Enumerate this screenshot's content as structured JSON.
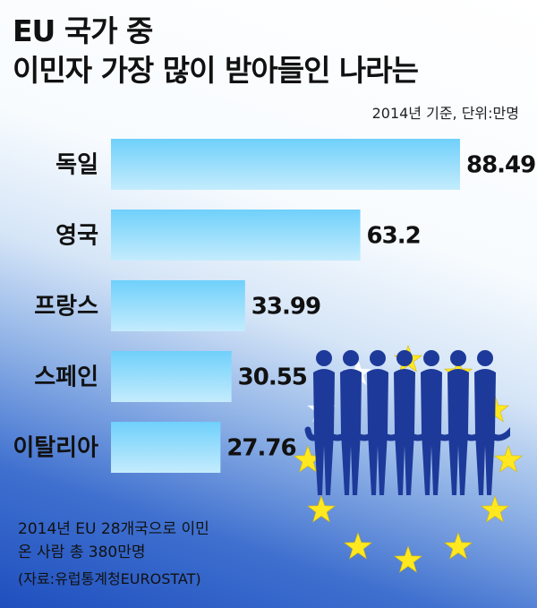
{
  "header": {
    "title_line1": "EU 국가 중",
    "title_line2": "이민자 가장 많이 받아들인 나라는",
    "unit_note": "2014년 기준, 단위:만명"
  },
  "footer": {
    "note_line1": "2014년 EU 28개국으로 이민",
    "note_line2": "온 사람 총 380만명",
    "source": "(자료:유럽통계청EUROSTAT)"
  },
  "colors": {
    "bar_top": "#6fd0fb",
    "bar_bottom": "#c4ecfd",
    "star": "#ffe820",
    "star_white": "#ffffff",
    "people": "#1d3a9a"
  },
  "chart_data": {
    "type": "bar",
    "orientation": "horizontal",
    "categories": [
      "독일",
      "영국",
      "프랑스",
      "스페인",
      "이탈리아"
    ],
    "values": [
      88.49,
      63.2,
      33.99,
      30.55,
      27.76
    ],
    "value_labels": [
      "88.49",
      "63.2",
      "33.99",
      "30.55",
      "27.76"
    ],
    "title": "EU 국가 중 이민자 가장 많이 받아들인 나라는",
    "unit": "만명",
    "xlim": [
      0,
      88.49
    ],
    "grid": false,
    "legend": "none"
  }
}
